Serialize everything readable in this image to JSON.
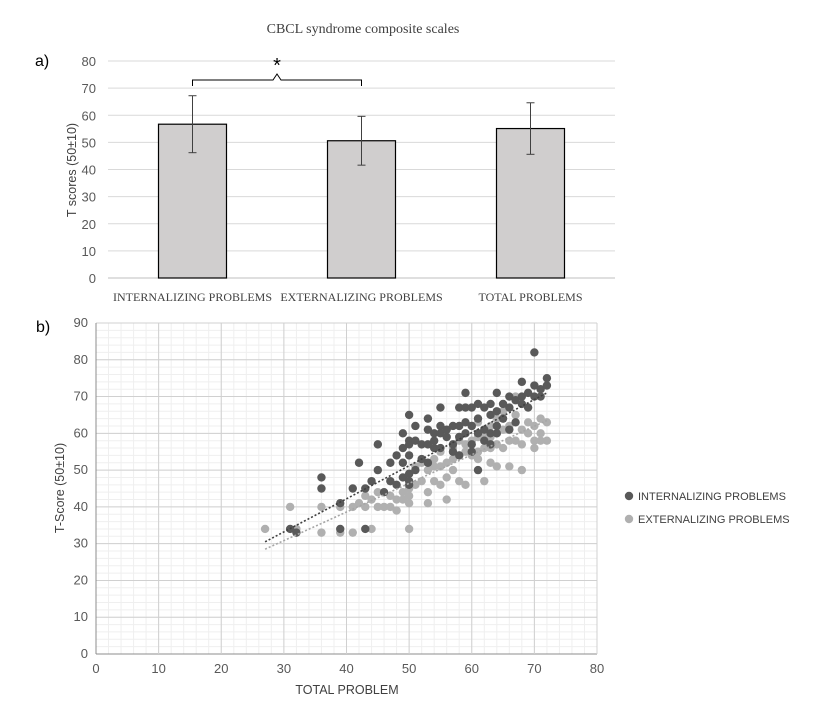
{
  "chart_data": [
    {
      "panel_label": "a)",
      "type": "bar",
      "title": "CBCL syndrome composite scales",
      "ylabel": "T scores (50±10)",
      "xlabel": "",
      "ylim": [
        0,
        80
      ],
      "yticks": [
        0,
        10,
        20,
        30,
        40,
        50,
        60,
        70,
        80
      ],
      "grid": true,
      "categories": [
        "INTERNALIZING PROBLEMS",
        "EXTERNALIZING PROBLEMS",
        "TOTAL PROBLEMS"
      ],
      "values": [
        56.7,
        50.6,
        55.1
      ],
      "error": [
        10.5,
        9.0,
        9.5
      ],
      "bar_color": "#d0cece",
      "significance": {
        "between": [
          0,
          1
        ],
        "label": "*"
      }
    },
    {
      "panel_label": "b)",
      "type": "scatter",
      "xlabel": "TOTAL PROBLEM",
      "ylabel": "T-Score (50±10)",
      "xlim": [
        0,
        80
      ],
      "ylim": [
        0,
        90
      ],
      "xticks": [
        0,
        10,
        20,
        30,
        40,
        50,
        60,
        70,
        80
      ],
      "yticks": [
        0,
        10,
        20,
        30,
        40,
        50,
        60,
        70,
        80,
        90
      ],
      "grid": true,
      "minor_grid": true,
      "legend_position": "right",
      "series": [
        {
          "name": "INTERNALIZING PROBLEMS",
          "color": "#595959",
          "trendline": {
            "x": [
              27,
              72
            ],
            "y": [
              30.5,
              71
            ]
          },
          "points": [
            [
              31,
              34
            ],
            [
              32,
              33
            ],
            [
              36,
              48
            ],
            [
              36,
              45
            ],
            [
              39,
              41
            ],
            [
              39,
              34
            ],
            [
              41,
              45
            ],
            [
              42,
              52
            ],
            [
              43,
              45
            ],
            [
              43,
              34
            ],
            [
              44,
              47
            ],
            [
              45,
              57
            ],
            [
              45,
              50
            ],
            [
              46,
              44
            ],
            [
              47,
              52
            ],
            [
              47,
              47
            ],
            [
              48,
              54
            ],
            [
              48,
              46
            ],
            [
              49,
              60
            ],
            [
              49,
              56
            ],
            [
              49,
              52
            ],
            [
              49,
              48
            ],
            [
              50,
              65
            ],
            [
              50,
              58
            ],
            [
              50,
              57
            ],
            [
              50,
              54
            ],
            [
              50,
              49
            ],
            [
              50,
              47
            ],
            [
              50,
              46
            ],
            [
              51,
              62
            ],
            [
              51,
              58
            ],
            [
              51,
              50
            ],
            [
              52,
              57
            ],
            [
              52,
              53
            ],
            [
              53,
              64
            ],
            [
              53,
              61
            ],
            [
              53,
              57
            ],
            [
              53,
              52
            ],
            [
              54,
              60
            ],
            [
              54,
              58
            ],
            [
              54,
              56
            ],
            [
              55,
              67
            ],
            [
              55,
              62
            ],
            [
              55,
              60
            ],
            [
              55,
              56
            ],
            [
              56,
              59
            ],
            [
              56,
              61
            ],
            [
              57,
              62
            ],
            [
              57,
              57
            ],
            [
              57,
              55
            ],
            [
              58,
              67
            ],
            [
              58,
              62
            ],
            [
              58,
              59
            ],
            [
              58,
              54
            ],
            [
              59,
              71
            ],
            [
              59,
              67
            ],
            [
              59,
              63
            ],
            [
              59,
              60
            ],
            [
              60,
              67
            ],
            [
              60,
              62
            ],
            [
              60,
              57
            ],
            [
              60,
              55
            ],
            [
              61,
              68
            ],
            [
              61,
              64
            ],
            [
              61,
              60
            ],
            [
              61,
              50
            ],
            [
              62,
              67
            ],
            [
              62,
              61
            ],
            [
              62,
              58
            ],
            [
              63,
              68
            ],
            [
              63,
              65
            ],
            [
              63,
              60
            ],
            [
              63,
              57
            ],
            [
              64,
              71
            ],
            [
              64,
              66
            ],
            [
              64,
              62
            ],
            [
              64,
              60
            ],
            [
              65,
              68
            ],
            [
              65,
              64
            ],
            [
              66,
              70
            ],
            [
              66,
              67
            ],
            [
              66,
              61
            ],
            [
              67,
              69
            ],
            [
              67,
              63
            ],
            [
              68,
              74
            ],
            [
              68,
              70
            ],
            [
              68,
              68
            ],
            [
              69,
              71
            ],
            [
              69,
              67
            ],
            [
              70,
              82
            ],
            [
              70,
              73
            ],
            [
              70,
              70
            ],
            [
              71,
              72
            ],
            [
              71,
              70
            ],
            [
              72,
              75
            ],
            [
              72,
              73
            ]
          ]
        },
        {
          "name": "EXTERNALIZING PROBLEMS",
          "color": "#b0b0b0",
          "trendline": {
            "x": [
              27,
              72
            ],
            "y": [
              28.5,
              63.5
            ]
          },
          "points": [
            [
              27,
              34
            ],
            [
              31,
              40
            ],
            [
              32,
              34
            ],
            [
              36,
              40
            ],
            [
              36,
              33
            ],
            [
              39,
              40
            ],
            [
              39,
              33
            ],
            [
              41,
              40
            ],
            [
              41,
              33
            ],
            [
              42,
              41
            ],
            [
              43,
              43
            ],
            [
              43,
              40
            ],
            [
              44,
              42
            ],
            [
              44,
              34
            ],
            [
              45,
              44
            ],
            [
              45,
              40
            ],
            [
              46,
              40
            ],
            [
              47,
              43
            ],
            [
              47,
              40
            ],
            [
              48,
              42
            ],
            [
              48,
              39
            ],
            [
              49,
              44
            ],
            [
              49,
              42
            ],
            [
              50,
              49
            ],
            [
              50,
              45
            ],
            [
              50,
              43
            ],
            [
              50,
              41
            ],
            [
              50,
              34
            ],
            [
              51,
              51
            ],
            [
              51,
              46
            ],
            [
              52,
              52
            ],
            [
              52,
              47
            ],
            [
              53,
              50
            ],
            [
              53,
              44
            ],
            [
              53,
              41
            ],
            [
              54,
              53
            ],
            [
              54,
              51
            ],
            [
              54,
              47
            ],
            [
              55,
              55
            ],
            [
              55,
              51
            ],
            [
              55,
              46
            ],
            [
              56,
              52
            ],
            [
              56,
              48
            ],
            [
              56,
              42
            ],
            [
              57,
              56
            ],
            [
              57,
              53
            ],
            [
              57,
              50
            ],
            [
              58,
              58
            ],
            [
              58,
              54
            ],
            [
              58,
              47
            ],
            [
              59,
              57
            ],
            [
              59,
              55
            ],
            [
              59,
              46
            ],
            [
              60,
              62
            ],
            [
              60,
              58
            ],
            [
              60,
              54
            ],
            [
              61,
              63
            ],
            [
              61,
              59
            ],
            [
              61,
              55
            ],
            [
              61,
              53
            ],
            [
              62,
              60
            ],
            [
              62,
              56
            ],
            [
              62,
              47
            ],
            [
              63,
              62
            ],
            [
              63,
              59
            ],
            [
              63,
              56
            ],
            [
              63,
              52
            ],
            [
              64,
              64
            ],
            [
              64,
              60
            ],
            [
              64,
              57
            ],
            [
              64,
              51
            ],
            [
              65,
              66
            ],
            [
              65,
              61
            ],
            [
              65,
              56
            ],
            [
              66,
              67
            ],
            [
              66,
              62
            ],
            [
              66,
              58
            ],
            [
              66,
              51
            ],
            [
              67,
              70
            ],
            [
              67,
              65
            ],
            [
              67,
              58
            ],
            [
              68,
              61
            ],
            [
              68,
              57
            ],
            [
              68,
              50
            ],
            [
              69,
              63
            ],
            [
              69,
              60
            ],
            [
              70,
              62
            ],
            [
              70,
              58
            ],
            [
              70,
              56
            ],
            [
              71,
              64
            ],
            [
              71,
              60
            ],
            [
              71,
              58
            ],
            [
              72,
              63
            ],
            [
              72,
              58
            ]
          ]
        }
      ]
    }
  ]
}
